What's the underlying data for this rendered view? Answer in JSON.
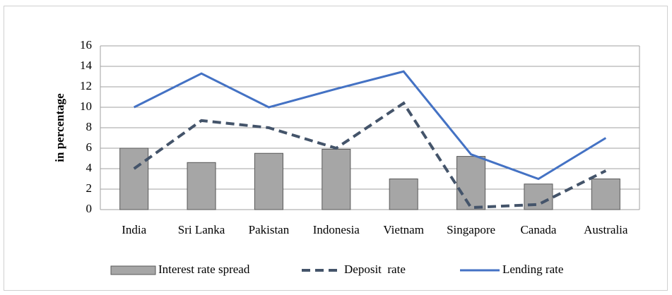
{
  "chart_data": {
    "type": "bar",
    "y_label": "in percentage",
    "categories": [
      "India",
      "Sri Lanka",
      "Pakistan",
      "Indonesia",
      "Vietnam",
      "Singapore",
      "Canada",
      "Australia"
    ],
    "series": [
      {
        "name": "Interest rate spread",
        "type": "bar",
        "color": "#a6a6a6",
        "values": [
          6,
          4.6,
          5.5,
          5.9,
          3.0,
          5.2,
          2.5,
          3.0
        ]
      },
      {
        "name": "Deposit  rate",
        "type": "line",
        "dashed": true,
        "color": "#44546a",
        "values": [
          4,
          8.7,
          8.0,
          6.0,
          10.4,
          0.2,
          0.5,
          3.8
        ]
      },
      {
        "name": "Lending rate",
        "type": "line",
        "dashed": false,
        "color": "#4472c4",
        "values": [
          10,
          13.3,
          10,
          11.8,
          13.5,
          5.4,
          3.0,
          7.0
        ]
      }
    ],
    "ylim": [
      0,
      16
    ],
    "yticks": [
      0,
      2,
      4,
      6,
      8,
      10,
      12,
      14,
      16
    ],
    "grid": true,
    "legend": "bottom"
  }
}
